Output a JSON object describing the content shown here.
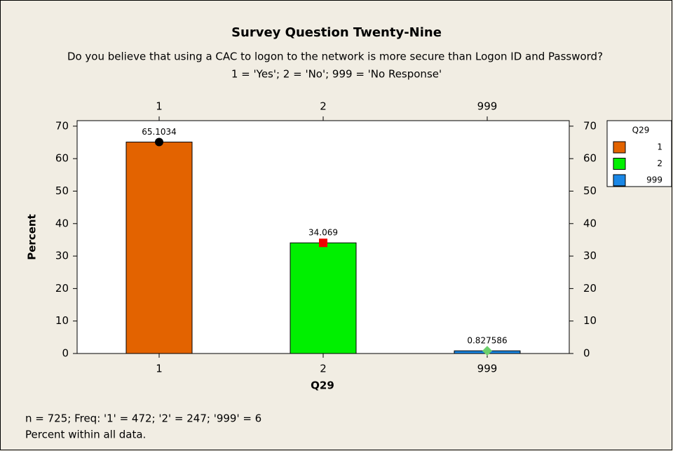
{
  "chart_data": {
    "type": "bar",
    "title": "Survey Question Twenty-Nine",
    "subtitle": [
      "Do you believe that using a CAC to logon to the network is more secure than Logon ID and Password?",
      "1 = 'Yes'; 2 = 'No'; 999 = 'No Response'"
    ],
    "x_label": "Q29",
    "y_label": "Percent",
    "categories": [
      "1",
      "2",
      "999"
    ],
    "values": [
      65.1034,
      34.069,
      0.827586
    ],
    "colors": [
      "#e36300",
      "#00f000",
      "#1a87e6"
    ],
    "marker_colors": [
      "#000000",
      "#f00000",
      "#6ccf6c"
    ],
    "ylim": [
      0,
      71.7
    ],
    "yticks": [
      0,
      10,
      20,
      30,
      40,
      50,
      60,
      70
    ],
    "legend": {
      "title": "Q29",
      "position": "right"
    },
    "footnotes": [
      "n = 725; Freq: '1' = 472; '2' = 247; '999' = 6",
      "Percent within all data."
    ]
  }
}
